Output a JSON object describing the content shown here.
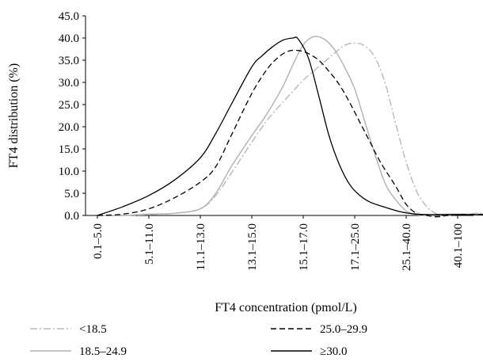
{
  "chart_data": {
    "type": "line",
    "title": "",
    "xlabel": "FT4 concentration (pmol/L)",
    "ylabel": "FT4 distribution (%)",
    "ylim": [
      0,
      45
    ],
    "yticks": [
      "0.0",
      "5.0",
      "10.0",
      "15.0",
      "20.0",
      "25.0",
      "30.0",
      "35.0",
      "40.0",
      "45.0"
    ],
    "categories": [
      "0.1–5.0",
      "5.1–11.0",
      "11.1–13.0",
      "13.1–15.0",
      "15.1–17.0",
      "17.1–25.0",
      "25.1–40.0",
      "40.1–100"
    ],
    "grid": false,
    "legend_position": "bottom",
    "series": [
      {
        "name": "<18.5",
        "style": "dash-dot",
        "color": "#b8b8b8",
        "x": [
          0,
          0.5,
          1,
          1.5,
          2,
          2.3,
          2.6,
          3,
          3.3,
          3.6,
          3.8,
          4,
          4.3,
          4.6,
          4.8,
          5,
          5.2,
          5.4,
          5.6,
          5.8,
          6,
          6.2,
          6.4,
          6.6,
          6.8,
          7,
          7.2,
          7.4,
          7.6,
          8
        ],
        "y": [
          0,
          0,
          0.2,
          0.5,
          1.5,
          4.5,
          9.5,
          16.5,
          21.5,
          25.5,
          28,
          30.5,
          33.5,
          36.5,
          38.3,
          38.9,
          38.2,
          35.5,
          29.5,
          20.5,
          12,
          5.5,
          2,
          0.3,
          0,
          0.3,
          0.3,
          0.5,
          0.6,
          0.6
        ]
      },
      {
        "name": "18.5–24.9",
        "style": "solid",
        "color": "#b0b0b0",
        "x": [
          0,
          0.5,
          1,
          1.5,
          2,
          2.3,
          2.6,
          3,
          3.3,
          3.6,
          3.8,
          4,
          4.2,
          4.4,
          4.6,
          4.8,
          5,
          5.2,
          5.4,
          5.6,
          5.8,
          6,
          6.2,
          6.4,
          6.6,
          6.8,
          7,
          7.5,
          8
        ],
        "y": [
          0,
          0,
          0.3,
          0.5,
          1.5,
          5,
          11,
          18,
          23,
          29,
          34,
          38.5,
          40.3,
          39.8,
          37.5,
          33.5,
          28.5,
          21,
          13.5,
          7,
          3.5,
          1,
          0.2,
          0,
          0.2,
          0.3,
          0.3,
          0.3,
          0.2
        ]
      },
      {
        "name": "25.0–29.9",
        "style": "dashed",
        "color": "#000000",
        "x": [
          0,
          0.5,
          1,
          1.5,
          2,
          2.3,
          2.6,
          3,
          3.3,
          3.5,
          3.7,
          3.9,
          4.1,
          4.3,
          4.5,
          4.7,
          4.9,
          5.1,
          5.3,
          5.5,
          5.8,
          6,
          6.2,
          6.4,
          6.6,
          6.8,
          7,
          7.5,
          8
        ],
        "y": [
          0,
          0.3,
          1.5,
          4,
          7.5,
          11,
          18,
          27.5,
          33,
          35.5,
          37,
          37.2,
          36.5,
          35,
          32.5,
          29.5,
          25.5,
          21,
          16.5,
          12,
          6.5,
          2.5,
          0.5,
          0,
          -0.3,
          0,
          0.2,
          0.2,
          0
        ]
      },
      {
        "name": "≥30.0",
        "style": "solid",
        "color": "#000000",
        "x": [
          0,
          0.5,
          1,
          1.5,
          2,
          2.3,
          2.6,
          3,
          3.2,
          3.4,
          3.6,
          3.8,
          3.9,
          4.1,
          4.3,
          4.5,
          4.7,
          4.9,
          5.1,
          5.3,
          5.6,
          5.9,
          6.2,
          6.5,
          7,
          7.5,
          8
        ],
        "y": [
          0,
          2,
          4.5,
          8,
          13,
          18.5,
          25,
          33.5,
          36,
          38,
          39.5,
          40,
          39.8,
          35.5,
          27,
          18,
          11.5,
          7,
          4.5,
          3,
          1.8,
          0.8,
          0.3,
          0.2,
          0.2,
          0.1,
          0
        ]
      }
    ]
  }
}
